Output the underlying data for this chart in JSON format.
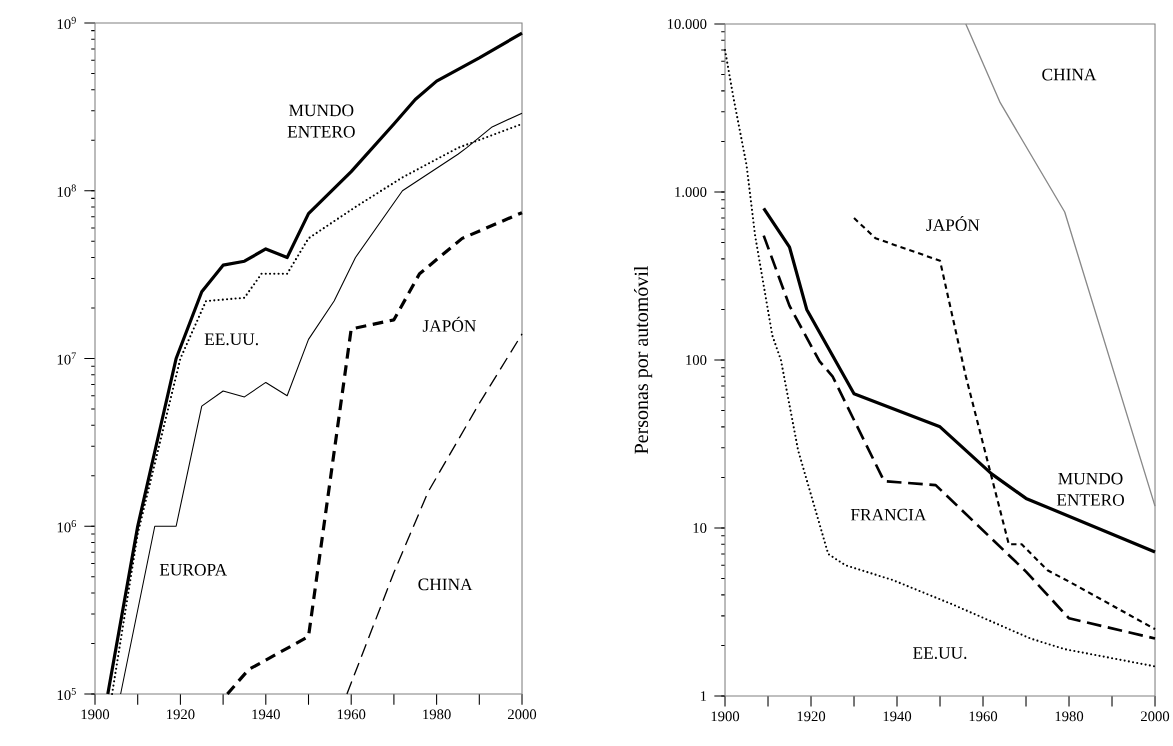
{
  "chart_data": [
    {
      "type": "line",
      "log": "y",
      "xlim": [
        1900,
        2000
      ],
      "ylim": [
        100000,
        1000000000
      ],
      "xticks": [
        1900,
        {
          "value": 1910,
          "label": null
        },
        1920,
        {
          "value": 1930,
          "label": null
        },
        1940,
        {
          "value": 1950,
          "label": null
        },
        1960,
        {
          "value": 1970,
          "label": null
        },
        1980,
        {
          "value": 1990,
          "label": null
        },
        2000
      ],
      "yticks": [
        {
          "value": 100000,
          "label": "10$^{5}$"
        },
        {
          "value": 1000000,
          "label": "10$^{6}$"
        },
        {
          "value": 10000000,
          "label": "10$^{7}$"
        },
        {
          "value": 100000000,
          "label": "10$^{8}$"
        },
        {
          "value": 1000000000,
          "label": "10$^{9}$"
        }
      ],
      "series": [
        {
          "name": "MUNDO ENTERO",
          "color": "#000000",
          "line_style": "solid",
          "x": [
            1903,
            1910,
            1919,
            1925,
            1930,
            1935,
            1940,
            1945,
            1950,
            1960,
            1970,
            1975,
            1980,
            1990,
            2000
          ],
          "values": [
            100000,
            1000000,
            10000000,
            25000000,
            36000000,
            38000000,
            45000000,
            40000000,
            73000000,
            130000000,
            250000000,
            350000000,
            450000000,
            620000000,
            870000000
          ]
        },
        {
          "name": "EE.UU.",
          "color": "#000000",
          "line_style": "dotted",
          "x": [
            1904,
            1910,
            1920,
            1926,
            1935,
            1939,
            1945,
            1950,
            1961,
            1972,
            1985,
            2000
          ],
          "values": [
            100000,
            900000,
            10000000,
            22000000,
            23000000,
            32000000,
            32000000,
            52000000,
            80000000,
            120000000,
            180000000,
            250000000
          ]
        },
        {
          "name": "EUROPA",
          "color": "#000000",
          "line_style": "solid",
          "x": [
            1906,
            1914,
            1919,
            1925,
            1930,
            1935,
            1940,
            1945,
            1950,
            1956,
            1961,
            1972,
            1985,
            1987,
            1993,
            2000
          ],
          "values": [
            100000,
            1000000,
            1000000,
            5200000,
            6400000,
            5900000,
            7200000,
            6000000,
            13000000,
            22000000,
            40000000,
            100000000,
            165000000,
            180000000,
            240000000,
            290000000
          ]
        },
        {
          "name": "JAPÓN",
          "color": "#000000",
          "line_style": "dashed",
          "x": [
            1931,
            1936,
            1950,
            1960,
            1970,
            1976,
            1986,
            2000
          ],
          "values": [
            100000,
            140000,
            220000,
            15000000,
            17000000,
            32000000,
            52000000,
            74000000
          ]
        },
        {
          "name": "CHINA",
          "color": "#000000",
          "line_style": "dashed",
          "x": [
            1959,
            1970,
            1978,
            1990,
            2000
          ],
          "values": [
            100000,
            530000,
            1600000,
            5400000,
            14000000
          ]
        }
      ]
    },
    {
      "type": "line",
      "log": "y",
      "ylabel": "Personas por automóvil",
      "xlim": [
        1900,
        2000
      ],
      "ylim": [
        1,
        10000
      ],
      "xticks": [
        1900,
        {
          "value": 1910,
          "label": null
        },
        1920,
        {
          "value": 1930,
          "label": null
        },
        1940,
        {
          "value": 1950,
          "label": null
        },
        1960,
        {
          "value": 1970,
          "label": null
        },
        1980,
        {
          "value": 1990,
          "label": null
        },
        2000
      ],
      "yticks": [
        1,
        10,
        100,
        {
          "value": 1000,
          "label": "1.000"
        },
        {
          "value": 10000,
          "label": "10.000"
        }
      ],
      "series": [
        {
          "name": "EE.UU.",
          "color": "#000000",
          "line_style": "dotted",
          "x": [
            1900,
            1902,
            1905,
            1907,
            1911,
            1913,
            1917,
            1924,
            1928,
            1939,
            1953,
            1971,
            1979,
            2000
          ],
          "values": [
            7000,
            3600,
            1450,
            550,
            140,
            100,
            29,
            7,
            6,
            4.9,
            3.5,
            2.2,
            1.9,
            1.5
          ]
        },
        {
          "name": "MUNDO ENTERO",
          "color": "#000000",
          "line_style": "solid",
          "x": [
            1909,
            1915,
            1919,
            1930,
            1950,
            1962,
            1970,
            2000
          ],
          "values": [
            800,
            470,
            200,
            63,
            40,
            21,
            15,
            7.2
          ]
        },
        {
          "name": "FRANCIA",
          "color": "#000000",
          "line_style": "dashed",
          "x": [
            1909,
            1915,
            1922,
            1925,
            1937,
            1949,
            1970,
            1980,
            2000
          ],
          "values": [
            550,
            210,
            98,
            80,
            19,
            18,
            5.5,
            2.9,
            2.2
          ]
        },
        {
          "name": "JAPÓN",
          "color": "#000000",
          "line_style": "dashed",
          "x": [
            1930,
            1935,
            1950,
            1956,
            1966,
            1969,
            1975,
            1980,
            2000
          ],
          "values": [
            700,
            530,
            390,
            80,
            8,
            8,
            5.6,
            4.8,
            2.5
          ]
        },
        {
          "name": "CHINA",
          "color": "#888888",
          "line_style": "solid",
          "x": [
            1956,
            1964,
            1979,
            2000
          ],
          "values": [
            10000,
            3400,
            760,
            13.5
          ]
        }
      ]
    }
  ]
}
